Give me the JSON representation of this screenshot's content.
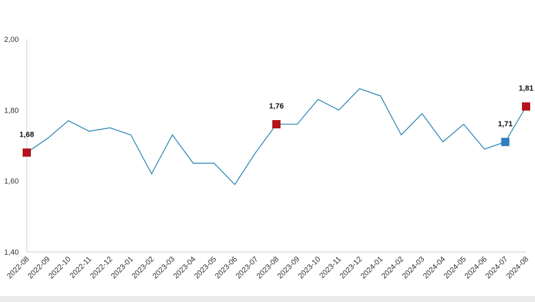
{
  "chart_data": {
    "type": "line",
    "title": "",
    "xlabel": "",
    "ylabel": "",
    "ylim": [
      1.4,
      2.0
    ],
    "yticks": [
      "1,40",
      "1,60",
      "1,80",
      "2,00"
    ],
    "grid": false,
    "line_color": "#2e86b4",
    "categories": [
      "2022-08",
      "2022-09",
      "2022-10",
      "2022-11",
      "2022-12",
      "2023-01",
      "2023-02",
      "2023-03",
      "2023-04",
      "2023-05",
      "2023-06",
      "2023-07",
      "2023-08",
      "2023-09",
      "2023-10",
      "2023-11",
      "2023-12",
      "2024-01",
      "2024-02",
      "2024-03",
      "2024-04",
      "2024-05",
      "2024-06",
      "2024-07",
      "2024-08"
    ],
    "values": [
      1.68,
      1.72,
      1.77,
      1.74,
      1.75,
      1.73,
      1.62,
      1.73,
      1.65,
      1.65,
      1.59,
      1.68,
      1.76,
      1.76,
      1.83,
      1.8,
      1.86,
      1.84,
      1.73,
      1.79,
      1.71,
      1.76,
      1.69,
      1.71,
      1.81
    ],
    "markers": [
      {
        "category": "2022-08",
        "label": "1,68",
        "color": "#b5121b"
      },
      {
        "category": "2023-08",
        "label": "1,76",
        "color": "#b5121b"
      },
      {
        "category": "2024-07",
        "label": "1,71",
        "color": "#2f7fc1"
      },
      {
        "category": "2024-08",
        "label": "1,81",
        "color": "#b5121b"
      }
    ]
  }
}
